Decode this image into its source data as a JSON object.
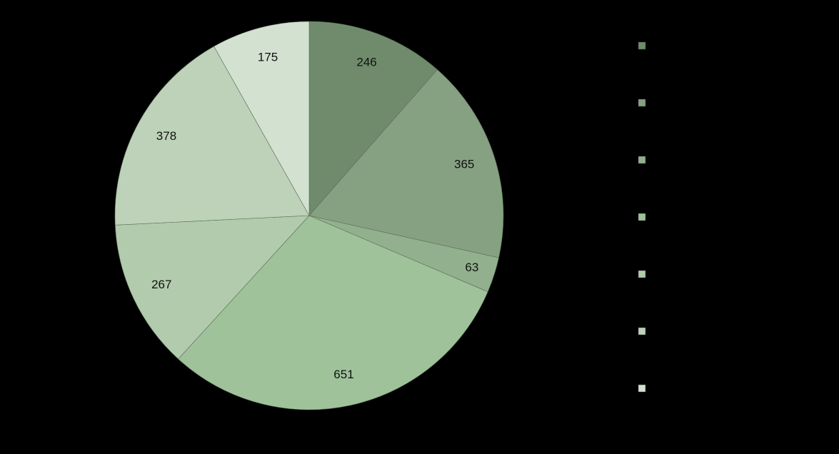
{
  "chart_data": {
    "type": "pie",
    "values": [
      246,
      365,
      63,
      651,
      267,
      378,
      175
    ],
    "colors": [
      "#6f8b6c",
      "#86a182",
      "#92b08d",
      "#9fc29a",
      "#b2cbad",
      "#bdd2b9",
      "#d3e1d0"
    ]
  }
}
